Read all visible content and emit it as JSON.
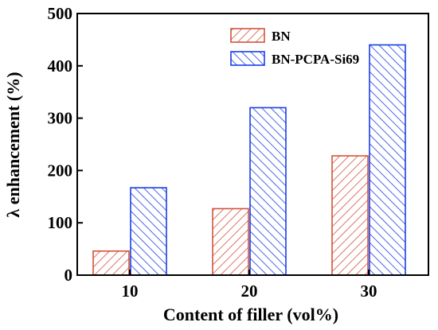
{
  "chart_data": {
    "type": "bar",
    "categories": [
      "10",
      "20",
      "30"
    ],
    "series": [
      {
        "name": "BN",
        "values": [
          46,
          127,
          228
        ],
        "color": "#d4533b",
        "hatch": "forward"
      },
      {
        "name": "BN-PCPA-Si69",
        "values": [
          167,
          320,
          440
        ],
        "color": "#1a3fe6",
        "hatch": "backward"
      }
    ],
    "title": "",
    "xlabel": "Content of filler (vol%)",
    "ylabel": "λ enhancement (%)",
    "ylim": [
      0,
      500
    ],
    "yticks": [
      0,
      100,
      200,
      300,
      400,
      500
    ],
    "grid": false,
    "legend_position": "top-right"
  }
}
